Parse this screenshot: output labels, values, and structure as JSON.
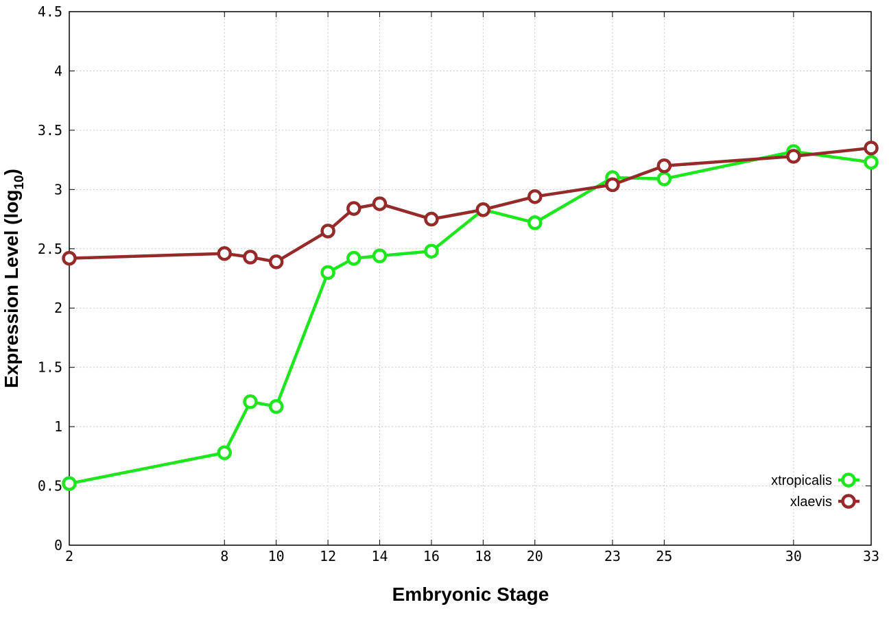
{
  "chart_data": {
    "type": "line",
    "xlabel": "Embryonic Stage",
    "ylabel": "Expression Level (log",
    "ylabel_subscript": "10",
    "ylabel_close": ")",
    "x": [
      2,
      8,
      9,
      10,
      12,
      13,
      14,
      16,
      18,
      20,
      23,
      25,
      30,
      33
    ],
    "x_tick_labels": [
      "2",
      "8",
      "10",
      "12",
      "14",
      "16",
      "18",
      "20",
      "23",
      "25",
      "30",
      "33"
    ],
    "x_tick_values": [
      2,
      8,
      10,
      12,
      14,
      16,
      18,
      20,
      23,
      25,
      30,
      33
    ],
    "y_tick_labels": [
      "0",
      "0.5",
      "1",
      "1.5",
      "2",
      "2.5",
      "3",
      "3.5",
      "4",
      "4.5"
    ],
    "y_tick_values": [
      0,
      0.5,
      1,
      1.5,
      2,
      2.5,
      3,
      3.5,
      4,
      4.5
    ],
    "xlim": [
      2,
      33
    ],
    "ylim": [
      0,
      4.5
    ],
    "grid": true,
    "legend_position": "bottom-right",
    "series": [
      {
        "name": "xtropicalis",
        "color": "#1ee61e",
        "values": [
          0.52,
          0.78,
          1.21,
          1.17,
          2.3,
          2.42,
          2.44,
          2.48,
          2.83,
          2.72,
          3.1,
          3.09,
          3.32,
          3.23
        ]
      },
      {
        "name": "xlaevis",
        "color": "#952a2a",
        "values": [
          2.42,
          2.46,
          2.43,
          2.39,
          2.65,
          2.84,
          2.88,
          2.75,
          2.83,
          2.94,
          3.04,
          3.2,
          3.28,
          3.35
        ]
      }
    ]
  }
}
